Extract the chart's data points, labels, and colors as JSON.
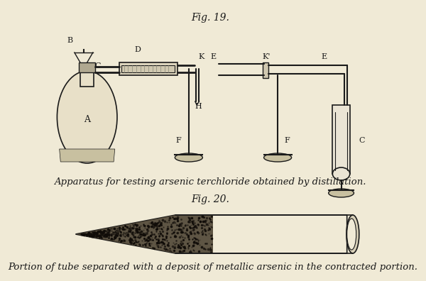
{
  "bg_color": "#f0ead6",
  "line_color": "#1a1a1a",
  "fig19_title": "Fig. 19.",
  "fig20_title": "Fig. 20.",
  "caption1": "Apparatus for testing arsenic terchloride obtained by distillation.",
  "caption2": "Portion of tube separated with a deposit of metallic arsenic in the contracted portion.",
  "caption_fontsize": 9.5,
  "title_fontsize": 10,
  "label_fontsize": 8
}
